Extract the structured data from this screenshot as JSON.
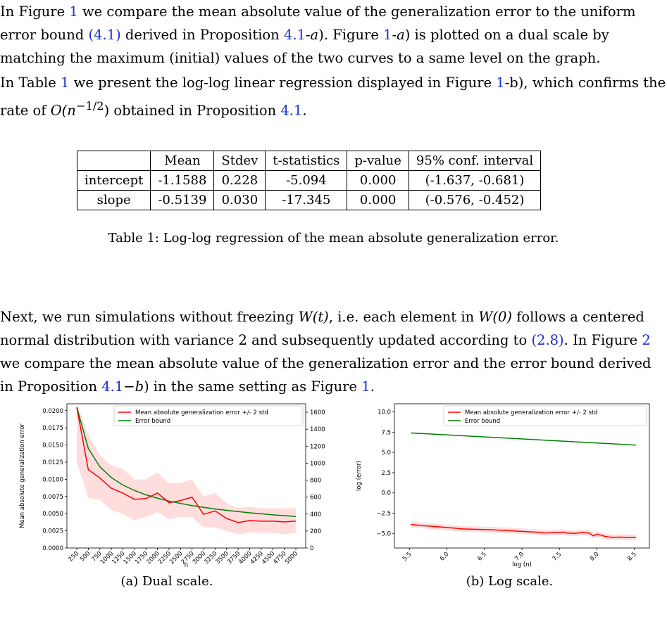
{
  "paragraphs": {
    "p1": {
      "t1": "In Figure ",
      "ref1": "1",
      "t2": " we compare the mean absolute value of the generalization error to the uniform error bound ",
      "ref2": "(4.1)",
      "t3": " derived in Proposition ",
      "ref3": "4.1",
      "t4": "-",
      "t5": "a",
      "t6": "). Figure ",
      "ref4": "1",
      "t7": "-",
      "t8": "a",
      "t9": ") is plotted on a dual scale by matching the maximum (initial) values of the two curves to a same level on the graph."
    },
    "p2": {
      "t1": "In Table ",
      "ref1": "1",
      "t2": " we present the log-log linear regression displayed in Figure ",
      "ref2": "1",
      "t3": "-b), which confirms the rate of ",
      "math": "O(n",
      "sup": "−1/2",
      "t4": ") obtained in Proposition ",
      "ref3": "4.1",
      "t5": "."
    },
    "p4": {
      "t1": "Next, we run simulations without freezing ",
      "m1": "W(t)",
      "t2": ", i.e. each element in ",
      "m2": "W(0)",
      "t3": " follows a centered normal distribution with variance 2 and subsequently updated according to ",
      "ref1": "(2.8)",
      "t4": ". In Figure ",
      "ref2": "2",
      "t5": " we compare the mean absolute value of the generalization error and the error bound derived in Proposition ",
      "ref3": "4.1",
      "t6": "−",
      "m3": "b",
      "t7": ") in the same setting as Figure ",
      "ref4": "1",
      "t8": "."
    }
  },
  "table": {
    "headers": [
      "",
      "Mean",
      "Stdev",
      "t-statistics",
      "p-value",
      "95% conf. interval"
    ],
    "rows": [
      [
        "intercept",
        "-1.1588",
        "0.228",
        "-5.094",
        "0.000",
        "(-1.637, -0.681)"
      ],
      [
        "slope",
        "-0.5139",
        "0.030",
        "-17.345",
        "0.000",
        "(-0.576, -0.452)"
      ]
    ],
    "caption": "Table 1: Log-log regression of the mean absolute generalization error."
  },
  "figure_captions": {
    "a": "(a) Dual scale.",
    "b": "(b) Log scale."
  },
  "colors": {
    "link": "#1a2fd0",
    "red": "#ff0000",
    "green": "#008000",
    "band": "#ffdddd"
  },
  "chart_data": [
    {
      "type": "line",
      "xlabel": "n",
      "ylabel": "Mean absolute generalization error",
      "y2label": "Error bound",
      "categories": [
        "250",
        "500",
        "750",
        "1000",
        "1250",
        "1500",
        "1750",
        "2000",
        "2250",
        "2500",
        "2750",
        "3000",
        "3250",
        "3500",
        "3750",
        "4000",
        "4250",
        "4500",
        "4750",
        "5000"
      ],
      "ylim": [
        0,
        0.021
      ],
      "y2lim": [
        0,
        1700
      ],
      "yticks": [
        "0.0000",
        "0.0025",
        "0.0050",
        "0.0075",
        "0.0100",
        "0.0125",
        "0.0150",
        "0.0175",
        "0.0200"
      ],
      "y2ticks": [
        "0",
        "200",
        "400",
        "600",
        "800",
        "1000",
        "1200",
        "1400",
        "1600"
      ],
      "legend": [
        "Mean absolute generalization error +/- 2 std",
        "Error bound"
      ],
      "legend_position": "top-right",
      "series": [
        {
          "name": "Mean absolute generalization error +/- 2 std",
          "axis": "left",
          "color": "#ff0000",
          "values": [
            0.0205,
            0.0114,
            0.0102,
            0.0087,
            0.008,
            0.0071,
            0.0072,
            0.008,
            0.0066,
            0.0069,
            0.0074,
            0.0049,
            0.0054,
            0.0043,
            0.0037,
            0.004,
            0.0039,
            0.0039,
            0.0038,
            0.0039
          ],
          "lower": [
            0.0125,
            0.0073,
            0.007,
            0.0055,
            0.005,
            0.004,
            0.0045,
            0.0052,
            0.0042,
            0.0045,
            0.0045,
            0.003,
            0.003,
            0.0025,
            0.002,
            0.0022,
            0.0022,
            0.0022,
            0.002,
            0.0022
          ],
          "upper": [
            0.023,
            0.0165,
            0.0135,
            0.012,
            0.0115,
            0.01,
            0.01,
            0.011,
            0.0094,
            0.0095,
            0.01,
            0.0075,
            0.008,
            0.0065,
            0.0058,
            0.006,
            0.0058,
            0.0058,
            0.0058,
            0.0058
          ]
        },
        {
          "name": "Error bound",
          "axis": "right",
          "color": "#008000",
          "values": [
            1660,
            1174,
            958,
            830,
            742,
            678,
            627,
            587,
            553,
            525,
            500,
            479,
            460,
            444,
            429,
            415,
            403,
            391,
            381,
            371
          ]
        }
      ]
    },
    {
      "type": "line",
      "xlabel": "log (n)",
      "ylabel": "log (error)",
      "xlim": [
        5.3,
        8.7
      ],
      "ylim": [
        -6.8,
        11
      ],
      "xticks": [
        "5.5",
        "6.0",
        "6.5",
        "7.0",
        "7.5",
        "8.0",
        "8.5"
      ],
      "yticks": [
        "−5.0",
        "−2.5",
        "0.0",
        "2.5",
        "5.0",
        "7.5",
        "10.0"
      ],
      "legend": [
        "Mean absolute generalization error +/- 2 std",
        "Error bound"
      ],
      "legend_position": "top-right",
      "series": [
        {
          "name": "Mean absolute generalization error +/- 2 std",
          "color": "#ff0000",
          "x": [
            5.52,
            5.7,
            5.9,
            6.1,
            6.2,
            6.4,
            6.6,
            6.8,
            7.0,
            7.1,
            7.2,
            7.3,
            7.45,
            7.55,
            7.6,
            7.7,
            7.8,
            7.9,
            7.95,
            8.0,
            8.05,
            8.1,
            8.2,
            8.3,
            8.4,
            8.52
          ],
          "values": [
            -3.9,
            -4.05,
            -4.2,
            -4.35,
            -4.45,
            -4.5,
            -4.55,
            -4.65,
            -4.75,
            -4.8,
            -4.85,
            -4.95,
            -4.9,
            -4.85,
            -4.95,
            -5.0,
            -4.9,
            -4.95,
            -5.3,
            -5.1,
            -5.2,
            -5.35,
            -5.5,
            -5.45,
            -5.5,
            -5.5
          ],
          "band": 0.35
        },
        {
          "name": "Error bound",
          "color": "#008000",
          "x": [
            5.52,
            8.52
          ],
          "values": [
            7.4,
            5.9
          ]
        }
      ]
    }
  ]
}
